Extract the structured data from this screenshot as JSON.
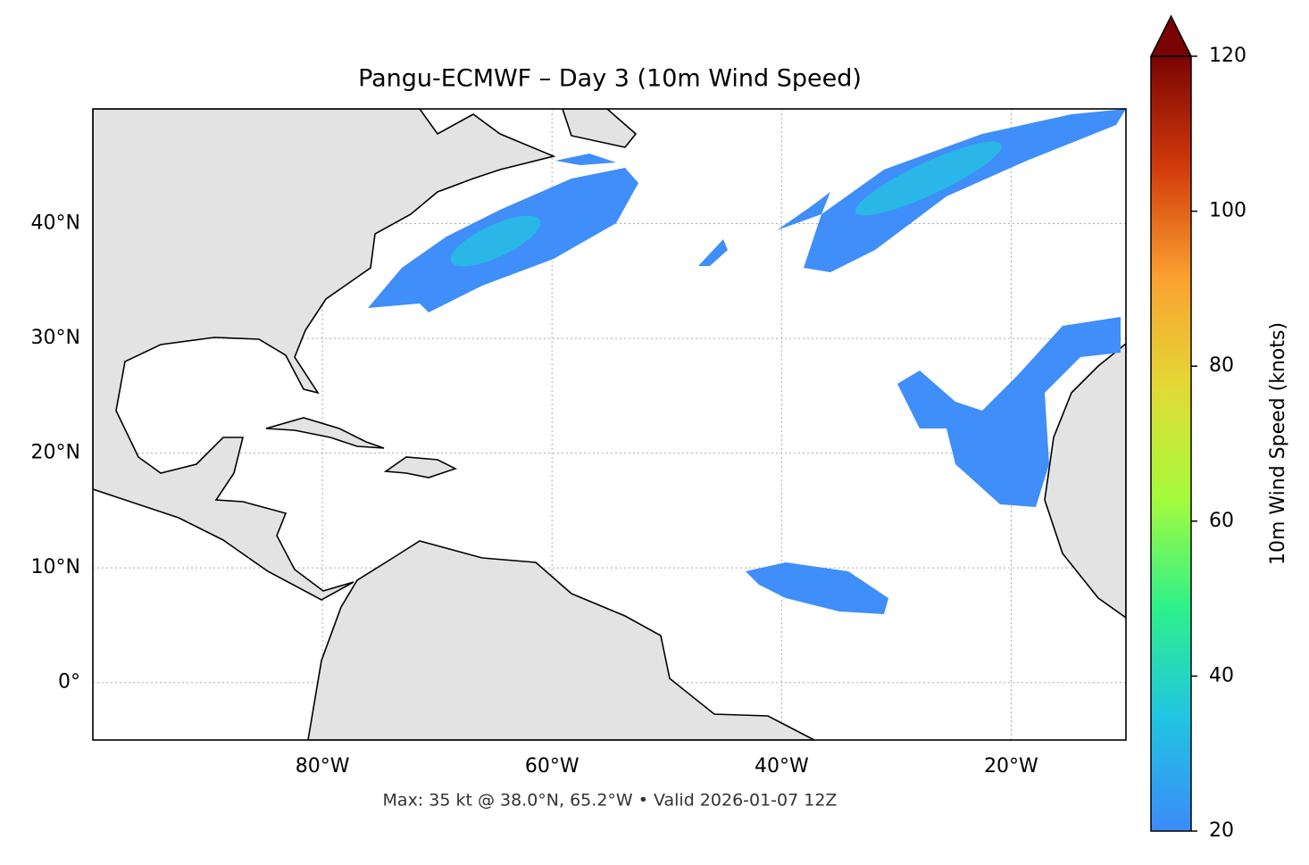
{
  "chart_data": {
    "type": "map",
    "title": "Pangu-ECMWF – Day 3 (10m Wind Speed)",
    "footnote": "Max: 35 kt @ 38.0°N, 65.2°W • Valid 2026-01-07 12Z",
    "xlim": [
      -100,
      -10
    ],
    "ylim": [
      -5,
      50
    ],
    "xticks": [
      {
        "value": -80,
        "label": "80°W"
      },
      {
        "value": -60,
        "label": "60°W"
      },
      {
        "value": -40,
        "label": "40°W"
      },
      {
        "value": -20,
        "label": "20°W"
      }
    ],
    "yticks": [
      {
        "value": 0,
        "label": "0°"
      },
      {
        "value": 10,
        "label": "10°N"
      },
      {
        "value": 20,
        "label": "20°N"
      },
      {
        "value": 30,
        "label": "30°N"
      },
      {
        "value": 40,
        "label": "40°N"
      }
    ],
    "grid": true,
    "colorbar": {
      "label": "10m Wind Speed (knots)",
      "clim": [
        20,
        120
      ],
      "ticks": [
        20,
        40,
        60,
        80,
        100,
        120
      ],
      "extend": "max",
      "colors": [
        "#3c8bf8",
        "#22c3e3",
        "#2cf08c",
        "#a4fb3c",
        "#e2d935",
        "#fba131",
        "#d23a0b",
        "#7a0403"
      ]
    }
  }
}
